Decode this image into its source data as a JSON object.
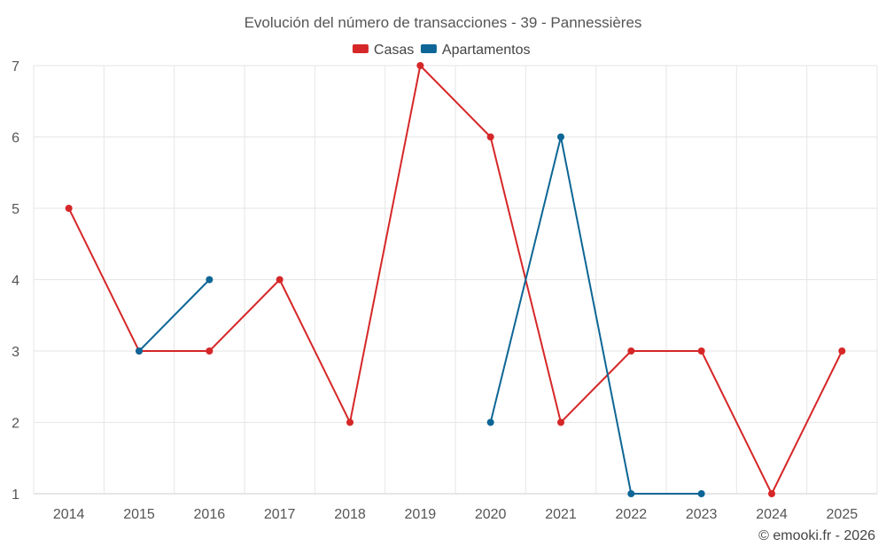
{
  "chart_data": {
    "type": "line",
    "title": "Evolución del número de transacciones - 39 - Pannessières",
    "xlabel": "",
    "ylabel": "",
    "categories": [
      "2014",
      "2015",
      "2016",
      "2017",
      "2018",
      "2019",
      "2020",
      "2021",
      "2022",
      "2023",
      "2024",
      "2025"
    ],
    "ylim": [
      1,
      7
    ],
    "yticks": [
      1,
      2,
      3,
      4,
      5,
      6,
      7
    ],
    "grid": true,
    "legend_position": "top-center",
    "series": [
      {
        "name": "Casas",
        "color": "#d62728",
        "values": [
          5,
          3,
          3,
          4,
          2,
          7,
          6,
          2,
          3,
          3,
          1,
          3
        ]
      },
      {
        "name": "Apartamentos",
        "color": "#0d6696",
        "values": [
          null,
          3,
          4,
          null,
          null,
          null,
          2,
          6,
          1,
          1,
          null,
          null
        ]
      }
    ],
    "credit": "© emooki.fr - 2026"
  }
}
